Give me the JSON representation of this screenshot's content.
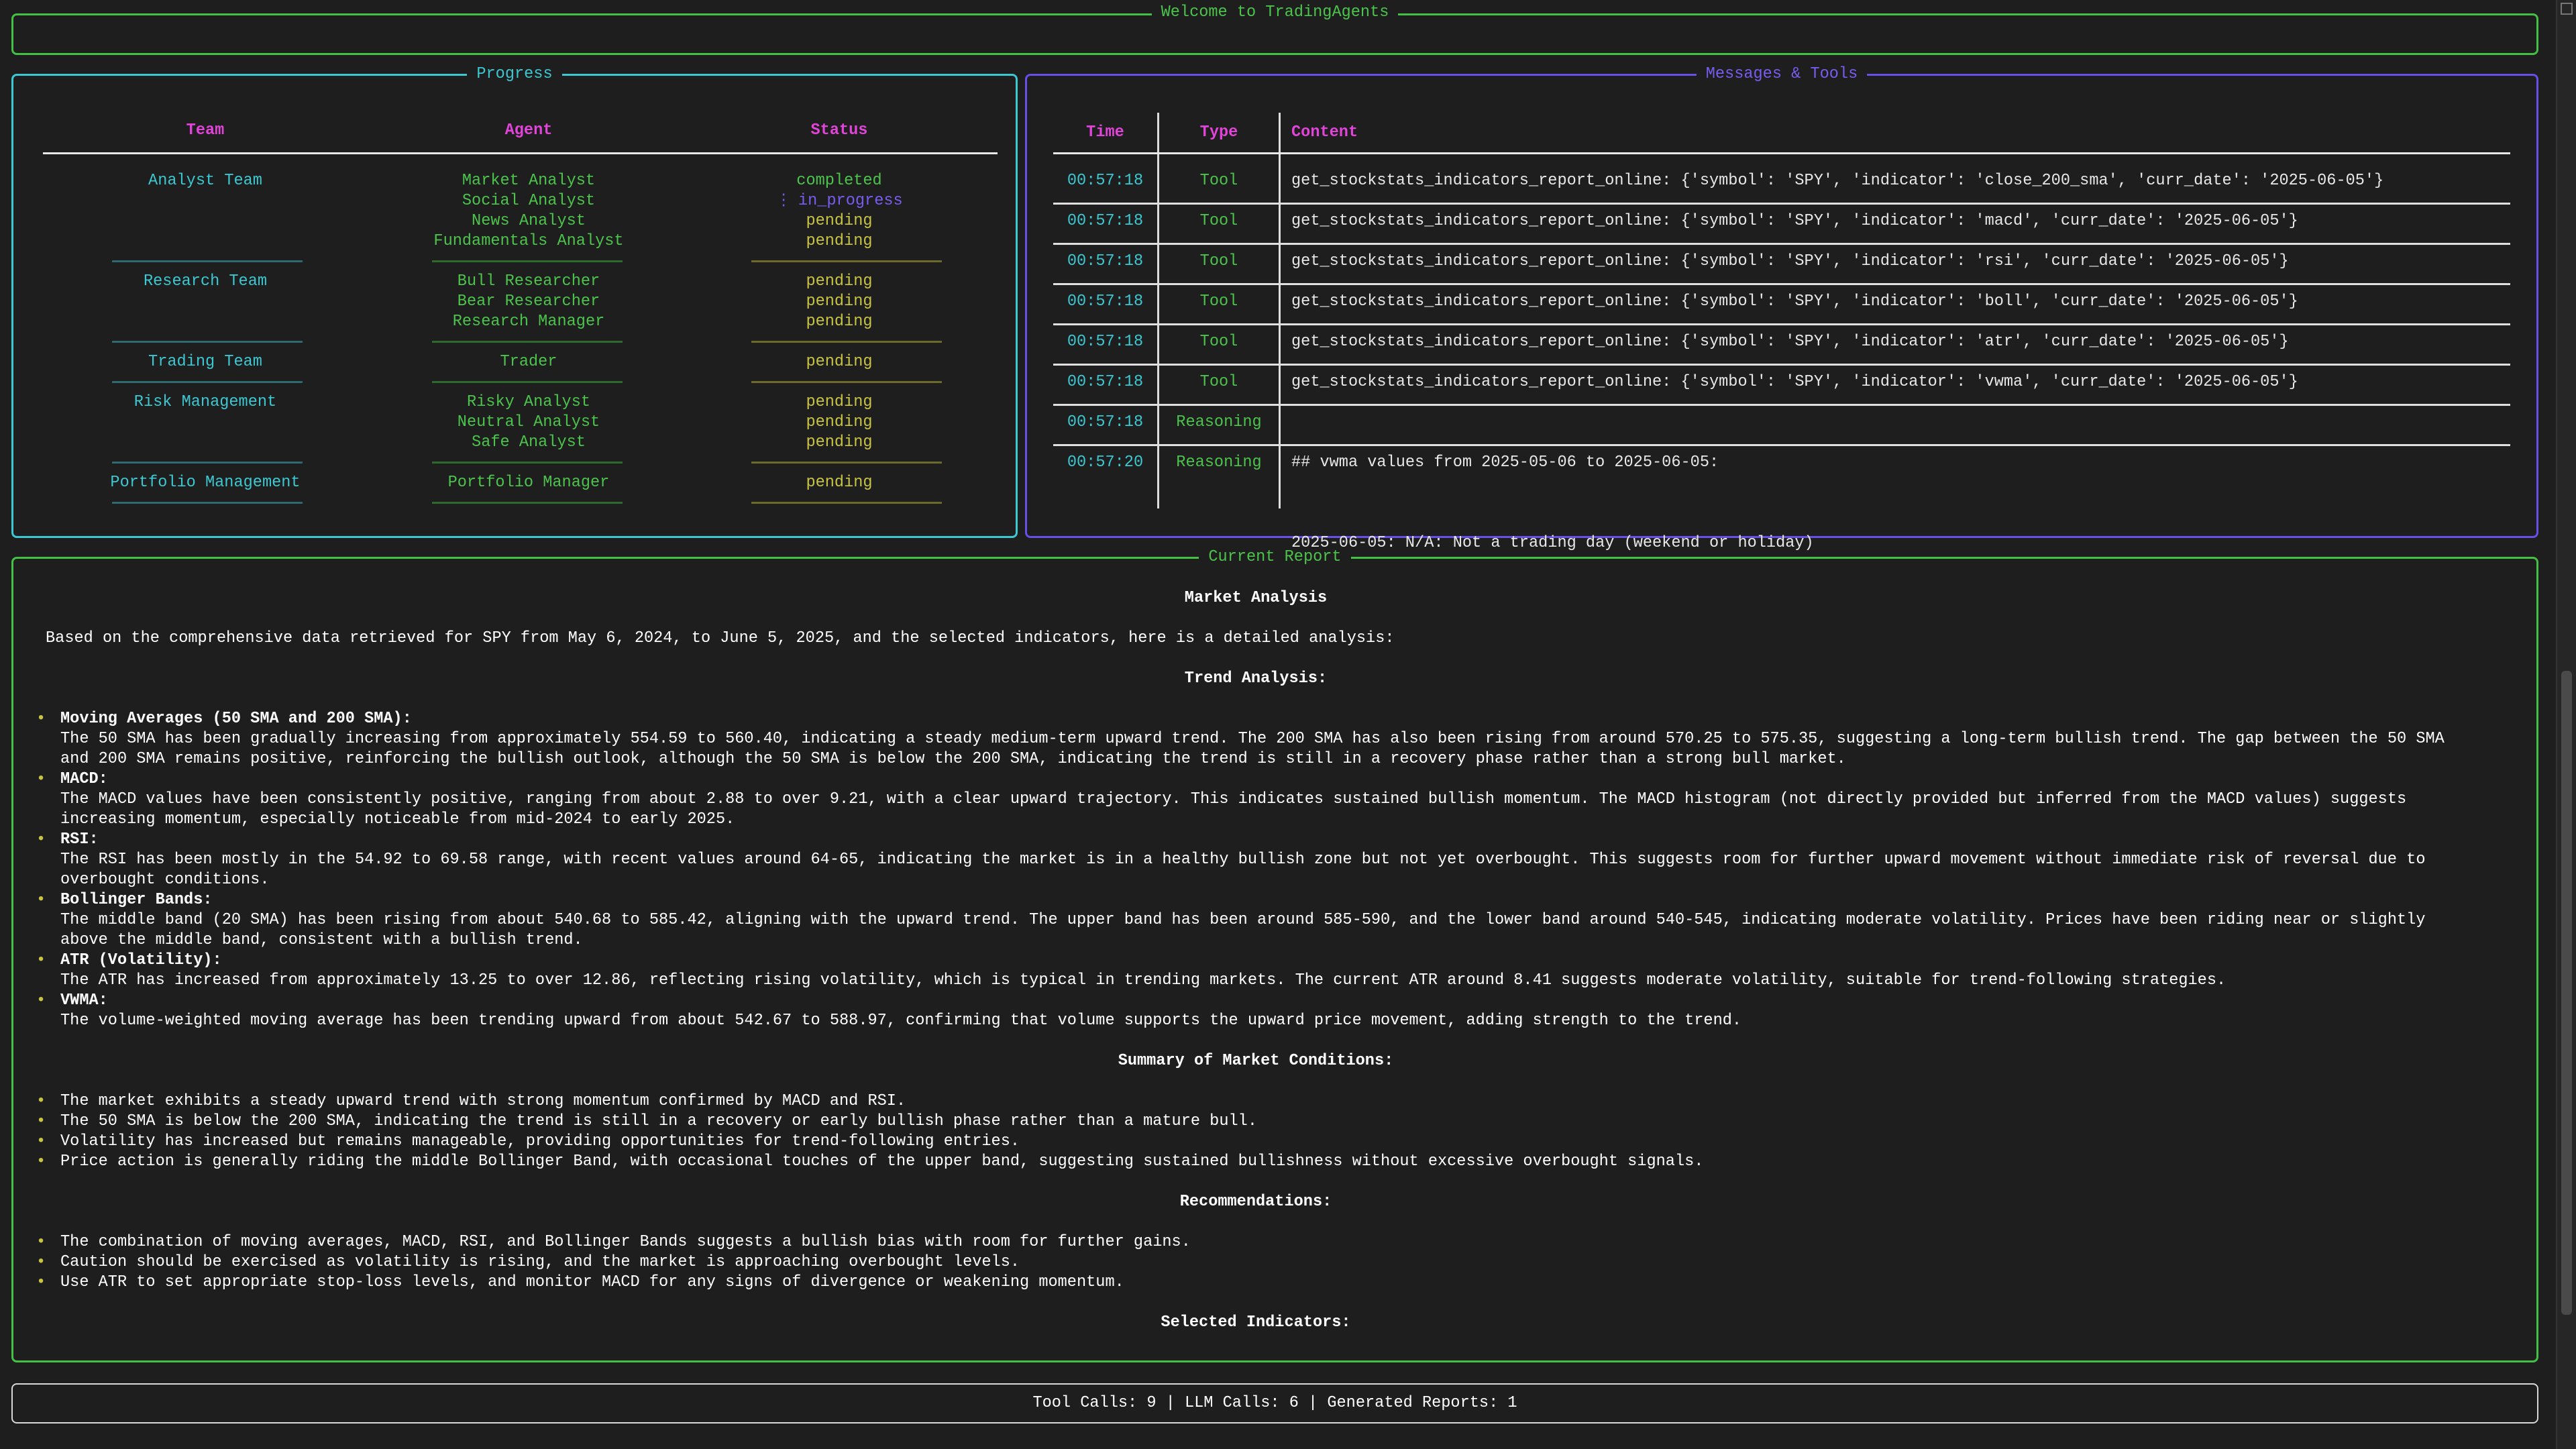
{
  "welcome": {
    "title": "Welcome to TradingAgents"
  },
  "progress": {
    "title": "Progress",
    "headers": {
      "team": "Team",
      "agent": "Agent",
      "status": "Status"
    },
    "groups": [
      {
        "team": "Analyst Team",
        "agents": [
          {
            "name": "Market Analyst",
            "status": "completed"
          },
          {
            "name": "Social Analyst",
            "status": "in_progress"
          },
          {
            "name": "News Analyst",
            "status": "pending"
          },
          {
            "name": "Fundamentals Analyst",
            "status": "pending"
          }
        ]
      },
      {
        "team": "Research Team",
        "agents": [
          {
            "name": "Bull Researcher",
            "status": "pending"
          },
          {
            "name": "Bear Researcher",
            "status": "pending"
          },
          {
            "name": "Research Manager",
            "status": "pending"
          }
        ]
      },
      {
        "team": "Trading Team",
        "agents": [
          {
            "name": "Trader",
            "status": "pending"
          }
        ]
      },
      {
        "team": "Risk Management",
        "agents": [
          {
            "name": "Risky Analyst",
            "status": "pending"
          },
          {
            "name": "Neutral Analyst",
            "status": "pending"
          },
          {
            "name": "Safe Analyst",
            "status": "pending"
          }
        ]
      },
      {
        "team": "Portfolio Management",
        "agents": [
          {
            "name": "Portfolio Manager",
            "status": "pending"
          }
        ]
      }
    ],
    "spinner_icon": "spinner-icon"
  },
  "messages": {
    "title": "Messages & Tools",
    "headers": {
      "time": "Time",
      "type": "Type",
      "content": "Content"
    },
    "rows": [
      {
        "time": "00:57:18",
        "type": "Tool",
        "content": [
          "get_stockstats_indicators_report_online: {'symbol': 'SPY', 'indicator': 'close_200_sma', 'curr_date': '2025-06-05'}"
        ]
      },
      {
        "time": "00:57:18",
        "type": "Tool",
        "content": [
          "get_stockstats_indicators_report_online: {'symbol': 'SPY', 'indicator': 'macd', 'curr_date': '2025-06-05'}"
        ]
      },
      {
        "time": "00:57:18",
        "type": "Tool",
        "content": [
          "get_stockstats_indicators_report_online: {'symbol': 'SPY', 'indicator': 'rsi', 'curr_date': '2025-06-05'}"
        ]
      },
      {
        "time": "00:57:18",
        "type": "Tool",
        "content": [
          "get_stockstats_indicators_report_online: {'symbol': 'SPY', 'indicator': 'boll', 'curr_date': '2025-06-05'}"
        ]
      },
      {
        "time": "00:57:18",
        "type": "Tool",
        "content": [
          "get_stockstats_indicators_report_online: {'symbol': 'SPY', 'indicator': 'atr', 'curr_date': '2025-06-05'}"
        ]
      },
      {
        "time": "00:57:18",
        "type": "Tool",
        "content": [
          "get_stockstats_indicators_report_online: {'symbol': 'SPY', 'indicator': 'vwma', 'curr_date': '2025-06-05'}"
        ]
      },
      {
        "time": "00:57:18",
        "type": "Reasoning",
        "content": [
          ""
        ]
      },
      {
        "time": "00:57:20",
        "type": "Reasoning",
        "content": [
          "## vwma values from 2025-05-06 to 2025-06-05:",
          "",
          "2025-06-05: N/A: Not a trading day (weekend or holiday)"
        ]
      }
    ]
  },
  "report": {
    "title": "Current Report",
    "blocks": [
      {
        "kind": "heading",
        "text": "Market Analysis"
      },
      {
        "kind": "para",
        "text": "Based on the comprehensive data retrieved for SPY from May 6, 2024, to June 5, 2025, and the selected indicators, here is a detailed analysis:"
      },
      {
        "kind": "heading",
        "text": "Trend Analysis:"
      },
      {
        "kind": "bullets",
        "items": [
          {
            "title": "Moving Averages (50 SMA and 200 SMA):",
            "text": "The 50 SMA has been gradually increasing from approximately 554.59 to 560.40, indicating a steady medium-term upward trend. The 200 SMA has also been rising from around 570.25 to 575.35, suggesting a long-term bullish trend. The gap between the 50 SMA and 200 SMA remains positive, reinforcing the bullish outlook, although the 50 SMA is below the 200 SMA, indicating the trend is still in a recovery phase rather than a strong bull market."
          },
          {
            "title": "MACD:",
            "text": "The MACD values have been consistently positive, ranging from about 2.88 to over 9.21, with a clear upward trajectory. This indicates sustained bullish momentum. The MACD histogram (not directly provided but inferred from the MACD values) suggests increasing momentum, especially noticeable from mid-2024 to early 2025."
          },
          {
            "title": "RSI:",
            "text": "The RSI has been mostly in the 54.92 to 69.58 range, with recent values around 64-65, indicating the market is in a healthy bullish zone but not yet overbought. This suggests room for further upward movement without immediate risk of reversal due to overbought conditions."
          },
          {
            "title": "Bollinger Bands:",
            "text": "The middle band (20 SMA) has been rising from about 540.68 to 585.42, aligning with the upward trend. The upper band has been around 585-590, and the lower band around 540-545, indicating moderate volatility. Prices have been riding near or slightly above the middle band, consistent with a bullish trend."
          },
          {
            "title": "ATR (Volatility):",
            "text": "The ATR has increased from approximately 13.25 to over 12.86, reflecting rising volatility, which is typical in trending markets. The current ATR around 8.41 suggests moderate volatility, suitable for trend-following strategies."
          },
          {
            "title": "VWMA:",
            "text": "The volume-weighted moving average has been trending upward from about 542.67 to 588.97, confirming that volume supports the upward price movement, adding strength to the trend."
          }
        ]
      },
      {
        "kind": "heading",
        "text": "Summary of Market Conditions:"
      },
      {
        "kind": "bullets",
        "items": [
          {
            "text": "The market exhibits a steady upward trend with strong momentum confirmed by MACD and RSI."
          },
          {
            "text": "The 50 SMA is below the 200 SMA, indicating the trend is still in a recovery or early bullish phase rather than a mature bull."
          },
          {
            "text": "Volatility has increased but remains manageable, providing opportunities for trend-following entries."
          },
          {
            "text": "Price action is generally riding the middle Bollinger Band, with occasional touches of the upper band, suggesting sustained bullishness without excessive overbought signals."
          }
        ]
      },
      {
        "kind": "heading",
        "text": "Recommendations:"
      },
      {
        "kind": "bullets",
        "items": [
          {
            "text": "The combination of moving averages, MACD, RSI, and Bollinger Bands suggests a bullish bias with room for further gains."
          },
          {
            "text": "Caution should be exercised as volatility is rising, and the market is approaching overbought levels."
          },
          {
            "text": "Use ATR to set appropriate stop-loss levels, and monitor MACD for any signs of divergence or weakening momentum."
          }
        ]
      },
      {
        "kind": "heading",
        "text": "Selected Indicators:"
      }
    ]
  },
  "footer": {
    "stats": "Tool Calls: 9 | LLM Calls: 6 | Generated Reports: 1"
  },
  "colors": {
    "background": "#1e1e1e",
    "green_border": "#44c044",
    "cyan": "#3cc8d2",
    "purple": "#6a4ee8",
    "magenta": "#e044d8",
    "yellow": "#c8c443"
  }
}
